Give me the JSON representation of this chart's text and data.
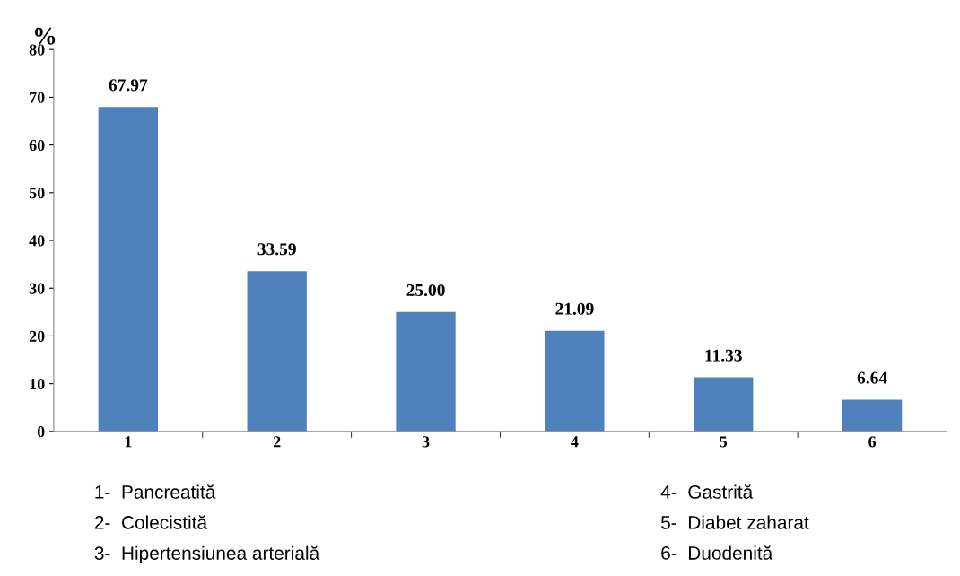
{
  "chart_data": {
    "type": "bar",
    "ylabel": "%",
    "categories": [
      "1",
      "2",
      "3",
      "4",
      "5",
      "6"
    ],
    "values": [
      67.97,
      33.59,
      25.0,
      21.09,
      11.33,
      6.64
    ],
    "value_labels": [
      "67.97",
      "33.59",
      "25.00",
      "21.09",
      "11.33",
      "6.64"
    ],
    "color": "#4f81bd",
    "ylim": [
      0,
      80
    ],
    "yticks": [
      0,
      10,
      20,
      30,
      40,
      50,
      60,
      70,
      80
    ],
    "grid": false,
    "legend": false,
    "annotations": [
      "1-  Pancreatită",
      "2-  Colecistită",
      "3-  Hipertensiunea arterială",
      "4-  Gastrită",
      "5-  Diabet zaharat",
      "6-  Duodenită"
    ]
  }
}
